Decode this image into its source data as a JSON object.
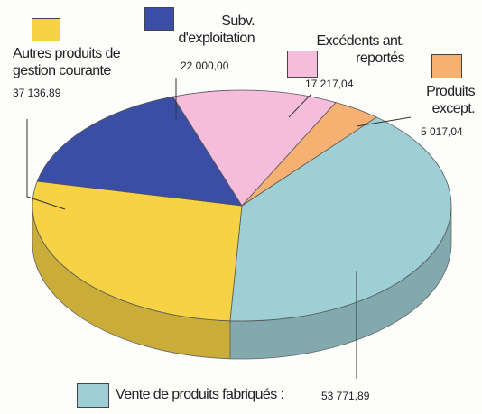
{
  "chart_data": {
    "type": "pie",
    "categories": [
      "Vente de produits fabriqués :",
      "Autres produits de gestion courante",
      "Subv. d'exploitation",
      "Excédents ant. reportés",
      "Produits except."
    ],
    "values": [
      53771.89,
      37136.89,
      22000.0,
      17217.04,
      5017.04
    ],
    "value_labels": [
      "53 771,89",
      "37 136,89",
      "22 000,00",
      "17 217,04",
      "5 017,04"
    ],
    "colors": [
      "#9ecfd4",
      "#f6d244",
      "#3b4ea6",
      "#f5bcdb",
      "#f6b172"
    ]
  }
}
